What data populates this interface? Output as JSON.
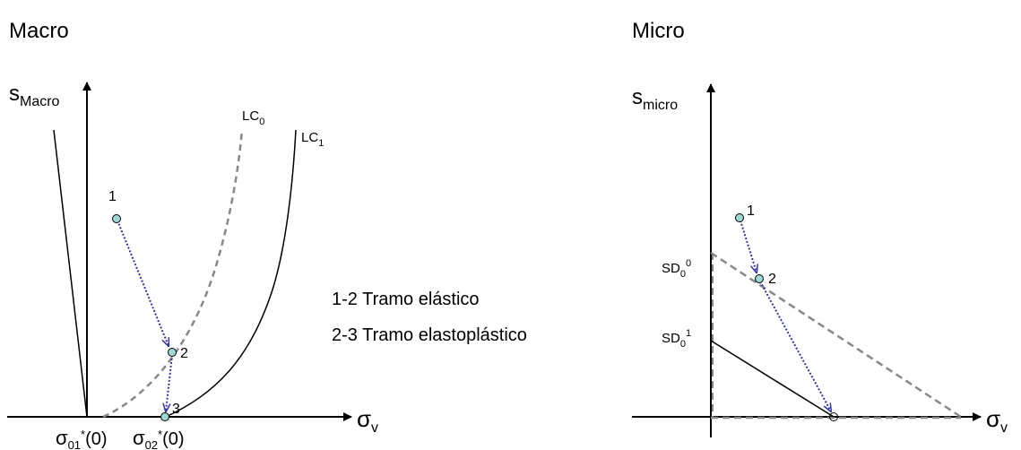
{
  "macro": {
    "title": "Macro",
    "y_axis": {
      "base": "s",
      "sub": "Macro"
    },
    "x_axis": {
      "base": "σ",
      "sub": "v"
    },
    "curves": [
      {
        "base": "LC",
        "sub": "0"
      },
      {
        "base": "LC",
        "sub": "1"
      }
    ],
    "points": [
      "1",
      "2",
      "3"
    ],
    "x_labels": [
      {
        "base": "σ",
        "sub": "01",
        "sup": "*",
        "tail": "(0)"
      },
      {
        "base": "σ",
        "sub": "02",
        "sup": "*",
        "tail": "(0)"
      }
    ]
  },
  "legend": [
    "1-2 Tramo elástico",
    "2-3 Tramo elastoplástico"
  ],
  "micro": {
    "title": "Micro",
    "y_axis": {
      "base": "s",
      "sub": "micro"
    },
    "x_axis": {
      "base": "σ",
      "sub": "v"
    },
    "y_labels": [
      {
        "base": "SD",
        "sub": "0",
        "sup": "0"
      },
      {
        "base": "SD",
        "sub": "0",
        "sup": "1"
      }
    ],
    "points": [
      "1",
      "2"
    ]
  }
}
